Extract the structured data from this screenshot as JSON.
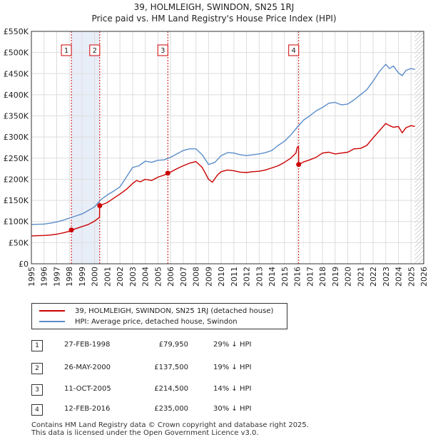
{
  "title_line1": "39, HOLMLEIGH, SWINDON, SN25 1RJ",
  "title_line2": "Price paid vs. HM Land Registry's House Price Index (HPI)",
  "colors": {
    "property": "#cc0000",
    "hpi": "#5b8dc9",
    "shade": "#e8eef8",
    "marker_box": "#cc0000"
  },
  "chart_data": {
    "type": "line",
    "xlim": [
      1995,
      2026
    ],
    "ylim": [
      0,
      550000
    ],
    "y_ticks": [
      0,
      50000,
      100000,
      150000,
      200000,
      250000,
      300000,
      350000,
      400000,
      450000,
      500000,
      550000
    ],
    "y_tick_labels": [
      "£0",
      "£50K",
      "£100K",
      "£150K",
      "£200K",
      "£250K",
      "£300K",
      "£350K",
      "£400K",
      "£450K",
      "£500K",
      "£550K"
    ],
    "x_ticks": [
      1995,
      1996,
      1997,
      1998,
      1999,
      2000,
      2001,
      2002,
      2003,
      2004,
      2005,
      2006,
      2007,
      2008,
      2009,
      2010,
      2011,
      2012,
      2013,
      2014,
      2015,
      2016,
      2017,
      2018,
      2019,
      2020,
      2021,
      2022,
      2023,
      2024,
      2025,
      2026
    ],
    "x_tick_labels": [
      "1995",
      "1996",
      "1997",
      "1998",
      "1999",
      "2000",
      "2001",
      "2002",
      "2003",
      "2004",
      "2005",
      "2006",
      "2007",
      "2008",
      "2009",
      "2010",
      "2011",
      "2012",
      "2013",
      "2014",
      "2015",
      "2016",
      "2017",
      "2018",
      "2019",
      "2020",
      "2021",
      "2022",
      "2023",
      "2024",
      "2025",
      "2026"
    ],
    "shaded_ranges": [
      [
        1998.16,
        2000.4
      ]
    ],
    "hatched_from": 2025.3,
    "series": [
      {
        "name": "39, HOLMLEIGH, SWINDON, SN25 1RJ (detached house)",
        "color": "#cc0000",
        "x": [
          1995.0,
          1995.5,
          1996.0,
          1996.5,
          1997.0,
          1997.5,
          1998.0,
          1998.16,
          1998.5,
          1999.0,
          1999.5,
          2000.0,
          2000.38,
          2000.4,
          2000.6,
          2001.0,
          2001.5,
          2002.0,
          2002.5,
          2003.0,
          2003.3,
          2003.6,
          2004.0,
          2004.5,
          2005.0,
          2005.5,
          2005.78,
          2006.0,
          2006.5,
          2007.0,
          2007.5,
          2008.0,
          2008.5,
          2009.0,
          2009.3,
          2009.7,
          2010.0,
          2010.5,
          2011.0,
          2011.5,
          2012.0,
          2012.5,
          2013.0,
          2013.5,
          2014.0,
          2014.5,
          2015.0,
          2015.5,
          2015.9,
          2016.0,
          2016.11,
          2016.12,
          2016.5,
          2017.0,
          2017.5,
          2018.0,
          2018.5,
          2019.0,
          2019.5,
          2020.0,
          2020.5,
          2021.0,
          2021.5,
          2022.0,
          2022.5,
          2023.0,
          2023.3,
          2023.6,
          2024.0,
          2024.3,
          2024.6,
          2025.0,
          2025.3
        ],
        "values": [
          66000,
          66500,
          67000,
          68000,
          70000,
          73000,
          77000,
          79950,
          83000,
          88000,
          93000,
          101000,
          110000,
          137500,
          140000,
          145000,
          155000,
          165000,
          176000,
          190000,
          197000,
          194000,
          200000,
          197000,
          205000,
          210000,
          214500,
          217000,
          225000,
          232000,
          238000,
          242000,
          228000,
          200000,
          193000,
          210000,
          218000,
          222000,
          220000,
          217000,
          216000,
          218000,
          219000,
          222000,
          227000,
          232000,
          240000,
          250000,
          262000,
          275000,
          278000,
          235000,
          241000,
          246000,
          252000,
          262000,
          264000,
          260000,
          262000,
          264000,
          272000,
          273000,
          280000,
          298000,
          315000,
          332000,
          327000,
          323000,
          325000,
          310000,
          322000,
          327000,
          325000
        ]
      },
      {
        "name": "HPI: Average price, detached house, Swindon",
        "color": "#5b8dc9",
        "x": [
          1995.0,
          1995.5,
          1996.0,
          1996.5,
          1997.0,
          1997.5,
          1998.0,
          1998.5,
          1999.0,
          1999.5,
          2000.0,
          2000.5,
          2001.0,
          2001.5,
          2002.0,
          2002.5,
          2003.0,
          2003.5,
          2004.0,
          2004.5,
          2005.0,
          2005.5,
          2006.0,
          2006.5,
          2007.0,
          2007.5,
          2008.0,
          2008.5,
          2009.0,
          2009.5,
          2010.0,
          2010.5,
          2011.0,
          2011.5,
          2012.0,
          2012.5,
          2013.0,
          2013.5,
          2014.0,
          2014.5,
          2015.0,
          2015.5,
          2016.0,
          2016.5,
          2017.0,
          2017.5,
          2018.0,
          2018.5,
          2019.0,
          2019.5,
          2020.0,
          2020.5,
          2021.0,
          2021.5,
          2022.0,
          2022.5,
          2023.0,
          2023.3,
          2023.6,
          2024.0,
          2024.3,
          2024.6,
          2025.0,
          2025.3
        ],
        "values": [
          93000,
          93500,
          94000,
          96000,
          99000,
          103000,
          108000,
          113000,
          118000,
          126000,
          135000,
          152000,
          163000,
          172000,
          182000,
          205000,
          228000,
          232000,
          243000,
          240000,
          245000,
          246000,
          252000,
          260000,
          268000,
          272000,
          272000,
          258000,
          235000,
          240000,
          256000,
          263000,
          262000,
          258000,
          256000,
          258000,
          260000,
          263000,
          268000,
          280000,
          290000,
          305000,
          323000,
          340000,
          350000,
          362000,
          370000,
          380000,
          382000,
          376000,
          378000,
          388000,
          400000,
          412000,
          432000,
          455000,
          472000,
          462000,
          468000,
          452000,
          445000,
          458000,
          462000,
          460000
        ]
      }
    ],
    "transactions": [
      {
        "num": "1",
        "x": 1998.16,
        "value": 79950
      },
      {
        "num": "2",
        "x": 2000.4,
        "value": 137500
      },
      {
        "num": "3",
        "x": 2005.78,
        "value": 214500
      },
      {
        "num": "4",
        "x": 2016.12,
        "value": 235000
      }
    ]
  },
  "legend": {
    "property_label": "39, HOLMLEIGH, SWINDON, SN25 1RJ (detached house)",
    "hpi_label": "HPI: Average price, detached house, Swindon"
  },
  "transactions_table": [
    {
      "num": "1",
      "date": "27-FEB-1998",
      "price": "£79,950",
      "hpi": "29% ↓ HPI"
    },
    {
      "num": "2",
      "date": "26-MAY-2000",
      "price": "£137,500",
      "hpi": "19% ↓ HPI"
    },
    {
      "num": "3",
      "date": "11-OCT-2005",
      "price": "£214,500",
      "hpi": "14% ↓ HPI"
    },
    {
      "num": "4",
      "date": "12-FEB-2016",
      "price": "£235,000",
      "hpi": "30% ↓ HPI"
    }
  ],
  "footer_line1": "Contains HM Land Registry data © Crown copyright and database right 2025.",
  "footer_line2": "This data is licensed under the Open Government Licence v3.0."
}
